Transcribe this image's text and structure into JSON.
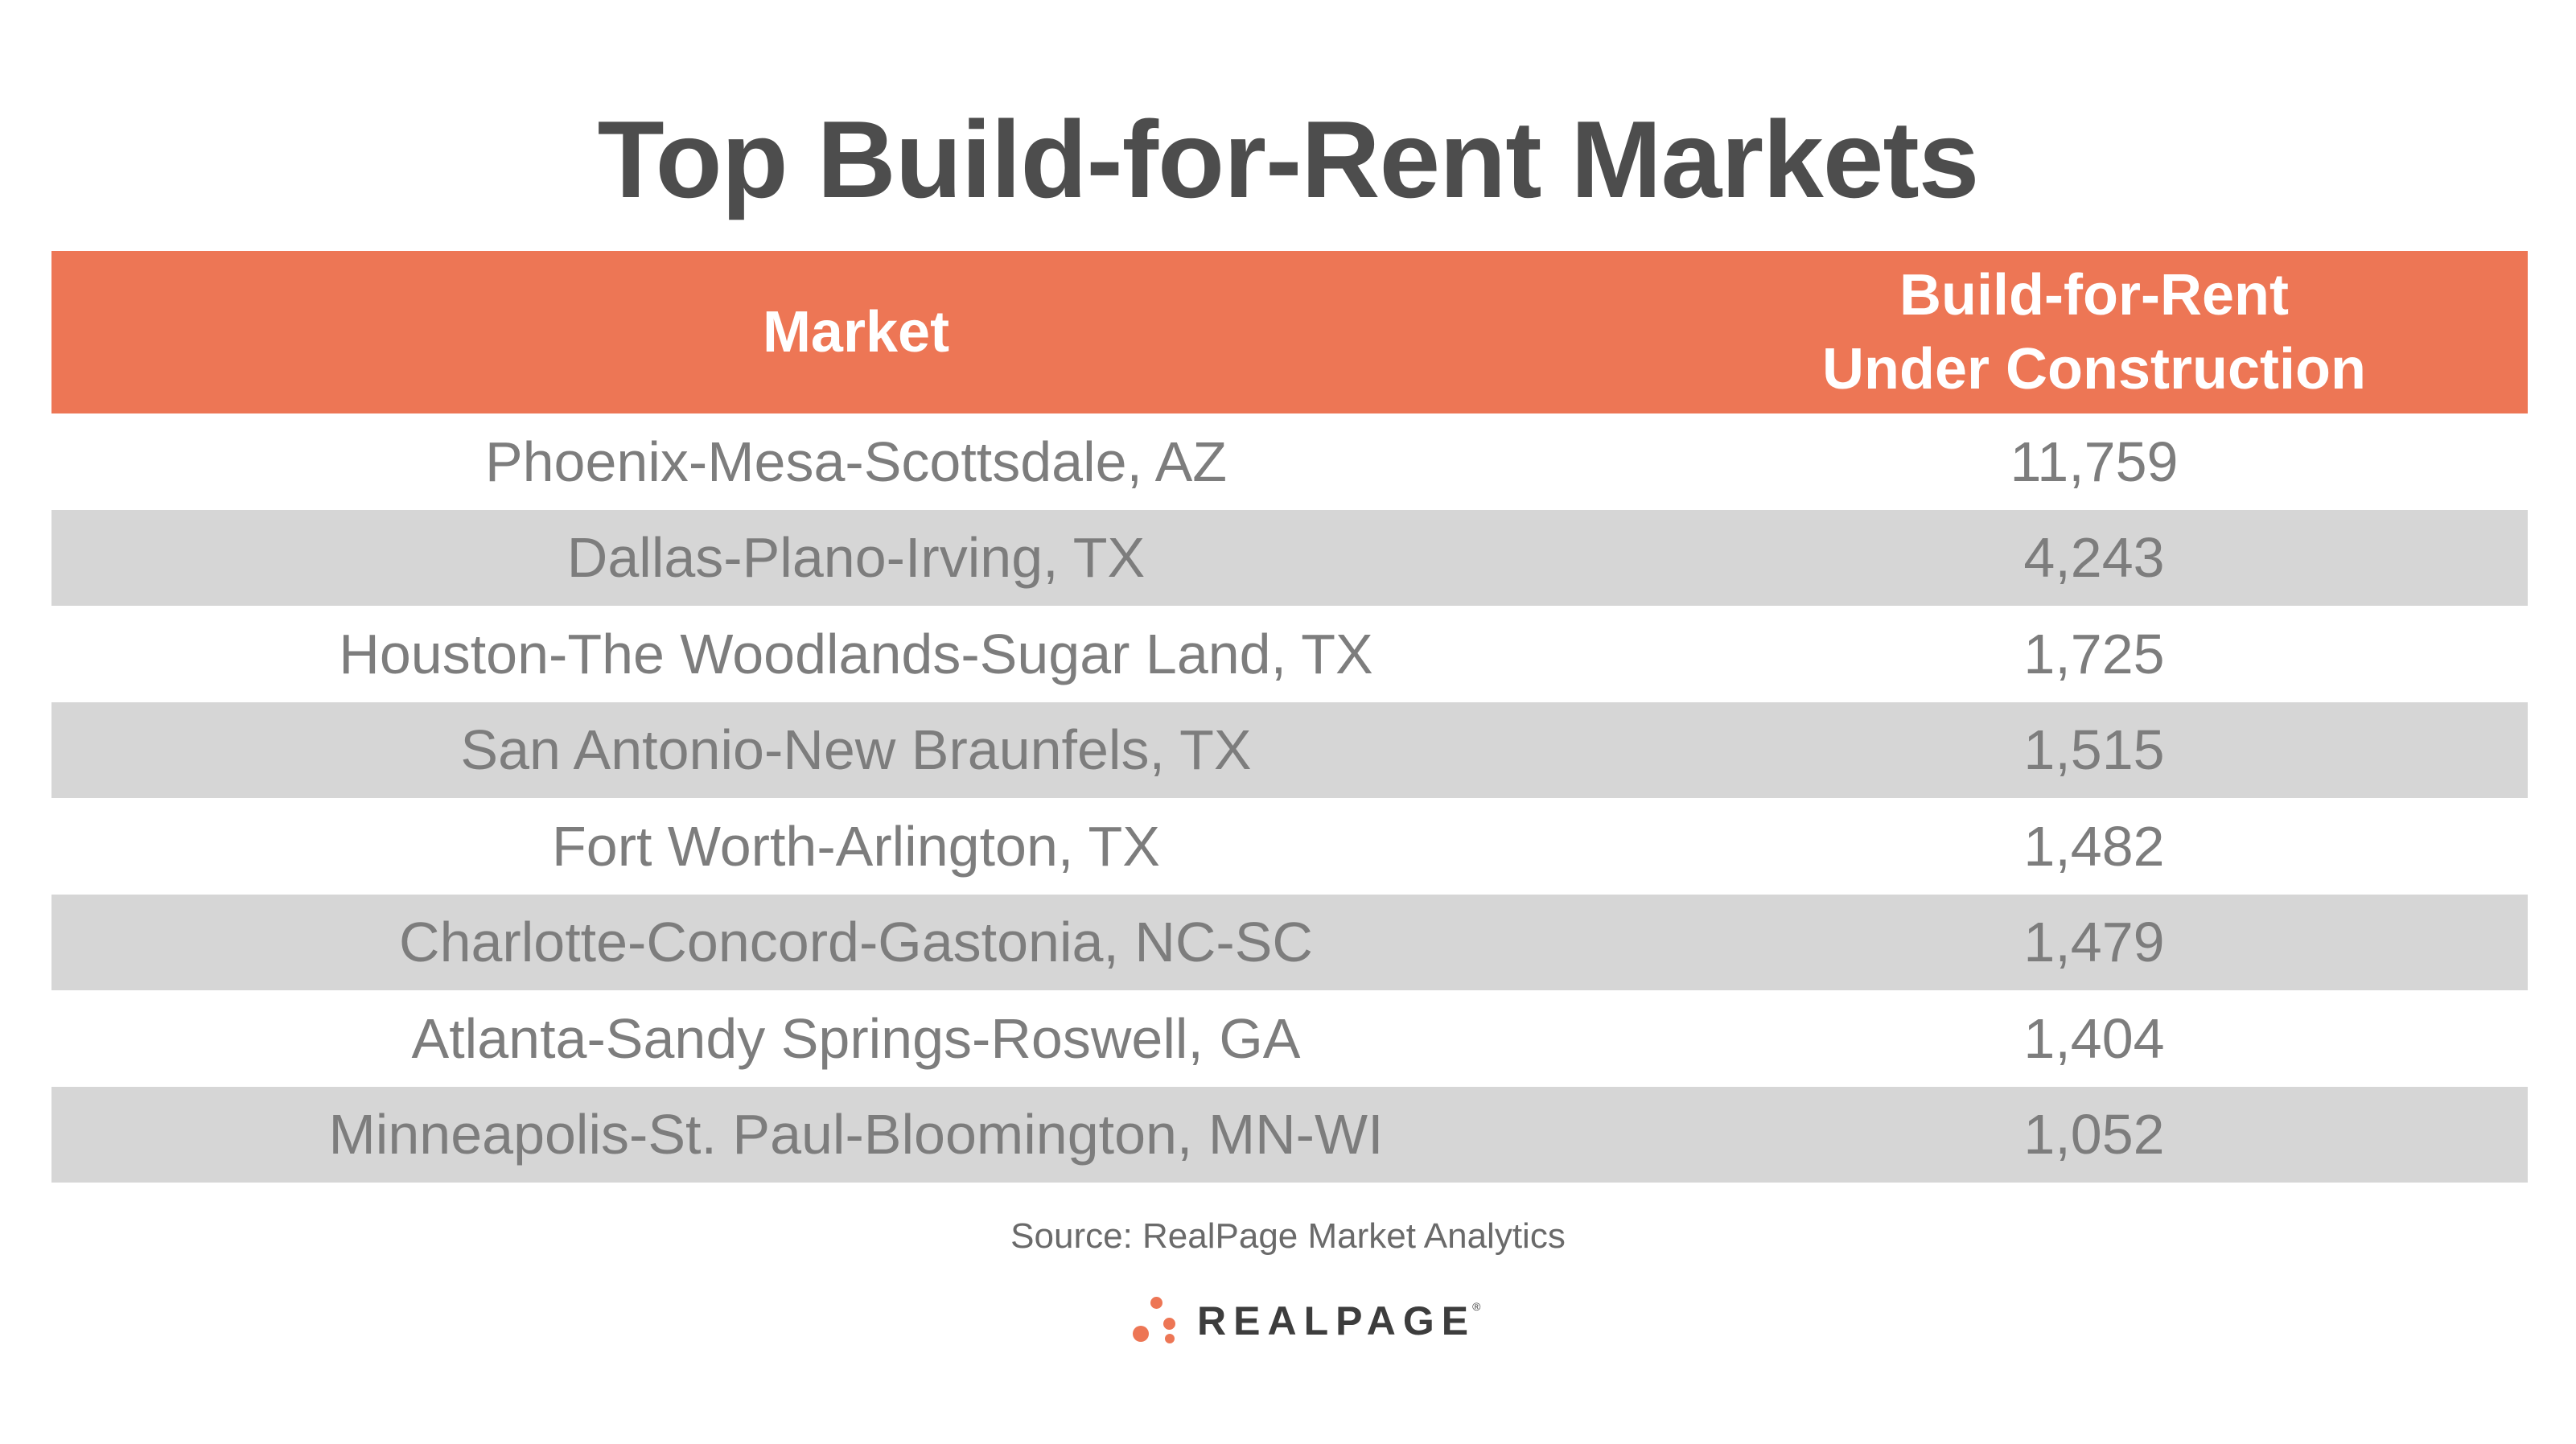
{
  "chart_data": {
    "type": "table",
    "title": "Top Build-for-Rent Markets",
    "columns": [
      "Market",
      "Build-for-Rent",
      "Under Construction"
    ],
    "header": {
      "market": "Market",
      "value_line1": "Build-for-Rent",
      "value_line2": "Under Construction"
    },
    "rows": [
      {
        "market": "Phoenix-Mesa-Scottsdale, AZ",
        "value": "11,759"
      },
      {
        "market": "Dallas-Plano-Irving, TX",
        "value": "4,243"
      },
      {
        "market": "Houston-The Woodlands-Sugar Land, TX",
        "value": "1,725"
      },
      {
        "market": "San Antonio-New Braunfels, TX",
        "value": "1,515"
      },
      {
        "market": "Fort Worth-Arlington, TX",
        "value": "1,482"
      },
      {
        "market": "Charlotte-Concord-Gastonia, NC-SC",
        "value": "1,479"
      },
      {
        "market": "Atlanta-Sandy Springs-Roswell, GA",
        "value": "1,404"
      },
      {
        "market": "Minneapolis-St. Paul-Bloomington, MN-WI",
        "value": "1,052"
      }
    ],
    "source": "Source: RealPage Market Analytics"
  },
  "logo": {
    "text": "REALPAGE",
    "trademark": "®",
    "icon": "dots-logo-icon"
  },
  "colors": {
    "header_bg": "#ed7655",
    "header_text": "#ffffff",
    "row_shade": "#d6d6d6",
    "text": "#7d7d7d",
    "title": "#4d4d4d"
  }
}
